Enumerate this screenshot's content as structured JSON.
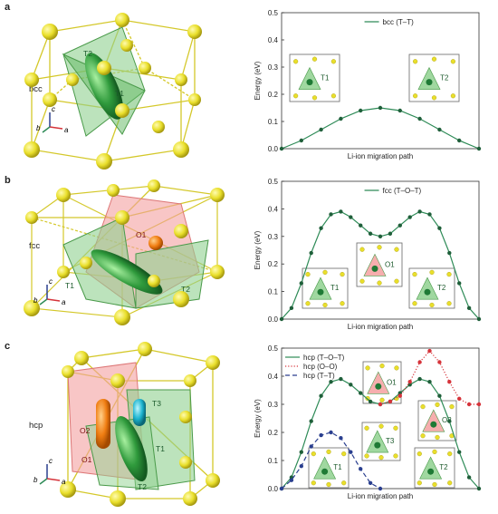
{
  "panels": [
    {
      "letter": "a",
      "structure": "bcc"
    },
    {
      "letter": "b",
      "structure": "fcc"
    },
    {
      "letter": "c",
      "structure": "hcp"
    }
  ],
  "axis_labels": {
    "a": "a",
    "b": "b",
    "c": "c"
  },
  "colors": {
    "green_line": "#2e8b57",
    "green_dot": "#1f5f3a",
    "red": "#d6333a",
    "blue": "#2a3f8f",
    "atom_yellow": "#e9df2b",
    "octa_red": "#f4a0a0",
    "tetra_green": "#8fd18f"
  },
  "chart_data": [
    {
      "type": "line",
      "ylabel": "Energy (eV)",
      "xlabel": "Li-ion migration path",
      "ylim": [
        0,
        0.5
      ],
      "yticks": [
        "0.0",
        "0.1",
        "0.2",
        "0.3",
        "0.4",
        "0.5"
      ],
      "legend": "top-right",
      "series": [
        {
          "name": "bcc (T–T)",
          "style": "solid",
          "color": "#2e8b57",
          "x": [
            0,
            0.1,
            0.2,
            0.3,
            0.4,
            0.5,
            0.6,
            0.7,
            0.8,
            0.9,
            1.0
          ],
          "y": [
            0.0,
            0.03,
            0.07,
            0.11,
            0.14,
            0.15,
            0.14,
            0.11,
            0.07,
            0.03,
            0.0
          ]
        }
      ],
      "insets": [
        "T1",
        "T2"
      ]
    },
    {
      "type": "line",
      "ylabel": "Energy (eV)",
      "xlabel": "Li-ion migration path",
      "ylim": [
        0,
        0.5
      ],
      "yticks": [
        "0.0",
        "0.1",
        "0.2",
        "0.3",
        "0.4",
        "0.5"
      ],
      "legend": "top-right",
      "series": [
        {
          "name": "fcc (T–O–T)",
          "style": "solid",
          "color": "#2e8b57",
          "x": [
            0,
            0.05,
            0.1,
            0.15,
            0.2,
            0.25,
            0.3,
            0.35,
            0.4,
            0.45,
            0.5,
            0.55,
            0.6,
            0.65,
            0.7,
            0.75,
            0.8,
            0.85,
            0.9,
            0.95,
            1.0
          ],
          "y": [
            0.0,
            0.04,
            0.13,
            0.24,
            0.33,
            0.38,
            0.39,
            0.37,
            0.34,
            0.31,
            0.3,
            0.31,
            0.34,
            0.37,
            0.39,
            0.38,
            0.33,
            0.24,
            0.13,
            0.04,
            0.0
          ]
        }
      ],
      "insets": [
        "T1",
        "O1",
        "T2"
      ]
    },
    {
      "type": "line",
      "ylabel": "Energy (eV)",
      "xlabel": "Li-ion migration path",
      "ylim": [
        0,
        0.5
      ],
      "yticks": [
        "0.0",
        "0.1",
        "0.2",
        "0.3",
        "0.4",
        "0.5"
      ],
      "legend": "top-left",
      "series": [
        {
          "name": "hcp (T–O–T)",
          "style": "solid",
          "color": "#2e8b57",
          "x": [
            0,
            0.05,
            0.1,
            0.15,
            0.2,
            0.25,
            0.3,
            0.35,
            0.4,
            0.45,
            0.5,
            0.55,
            0.6,
            0.65,
            0.7,
            0.75,
            0.8,
            0.85,
            0.9,
            0.95,
            1.0
          ],
          "y": [
            0.0,
            0.04,
            0.13,
            0.24,
            0.33,
            0.38,
            0.39,
            0.37,
            0.34,
            0.31,
            0.3,
            0.31,
            0.34,
            0.37,
            0.39,
            0.38,
            0.33,
            0.24,
            0.13,
            0.04,
            0.0
          ]
        },
        {
          "name": "hcp (O–O)",
          "style": "dotted",
          "color": "#d6333a",
          "x": [
            0.5,
            0.55,
            0.6,
            0.65,
            0.7,
            0.75,
            0.8,
            0.85,
            0.9,
            0.95,
            1.0
          ],
          "y": [
            0.3,
            0.31,
            0.33,
            0.38,
            0.45,
            0.49,
            0.45,
            0.38,
            0.32,
            0.3,
            0.3
          ]
        },
        {
          "name": "hcp (T–T)",
          "style": "dashed",
          "color": "#2a3f8f",
          "x": [
            0,
            0.05,
            0.1,
            0.15,
            0.2,
            0.25,
            0.3,
            0.35,
            0.4,
            0.45,
            0.5
          ],
          "y": [
            0.0,
            0.03,
            0.08,
            0.15,
            0.19,
            0.2,
            0.18,
            0.13,
            0.07,
            0.02,
            0.0
          ]
        }
      ],
      "insets": [
        "O1",
        "O2",
        "T1",
        "T3",
        "T2"
      ]
    }
  ]
}
